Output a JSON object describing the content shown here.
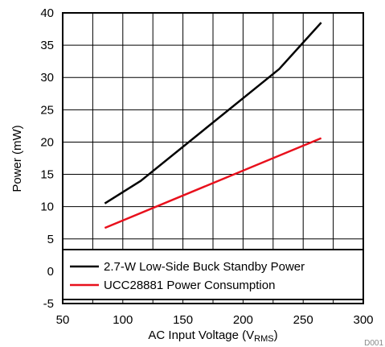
{
  "chart_data": {
    "type": "line",
    "title": "",
    "xlabel": "AC Input Voltage (V",
    "xlabel_sub": "RMS",
    "xlabel_close": ")",
    "ylabel": "Power (mW)",
    "xlim": [
      50,
      300
    ],
    "ylim": [
      -5,
      40
    ],
    "x_ticks": [
      50,
      100,
      150,
      200,
      250,
      300
    ],
    "y_ticks": [
      -5,
      0,
      5,
      10,
      15,
      20,
      25,
      30,
      35,
      40
    ],
    "grid": true,
    "legend_position": "bottom",
    "series": [
      {
        "name": "2.7-W Low-Side Buck Standby Power",
        "color": "#000000",
        "x": [
          85,
          115,
          230,
          265
        ],
        "y": [
          10.5,
          14.0,
          31.3,
          38.5
        ]
      },
      {
        "name": "UCC28881 Power Consumption",
        "color": "#e8101c",
        "x": [
          85,
          265
        ],
        "y": [
          6.7,
          20.6
        ]
      }
    ]
  },
  "figure_code": "D001"
}
